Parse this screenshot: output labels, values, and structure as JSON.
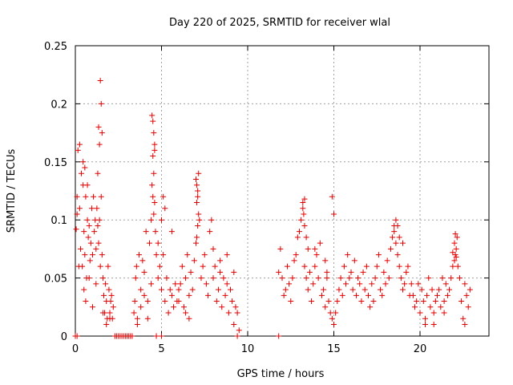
{
  "chart_data": {
    "type": "scatter",
    "title": "Day 220 of 2025, SRMTID for receiver wlal",
    "xlabel": "GPS time / hours",
    "ylabel": "SRMTID / TECUs",
    "xlim": [
      0,
      24
    ],
    "ylim": [
      0,
      0.25
    ],
    "xticks": [
      0,
      5,
      10,
      15,
      20
    ],
    "xtick_labels": [
      "0",
      "5",
      "10",
      "15",
      "20"
    ],
    "yticks": [
      0,
      0.05,
      0.1,
      0.15,
      0.2,
      0.25
    ],
    "ytick_labels": [
      "0",
      "0.05",
      "0.1",
      "0.15",
      "0.2",
      "0.25"
    ],
    "grid": true,
    "marker": "+",
    "series": [
      {
        "name": "SRMTID",
        "color": "#e00000",
        "x": [
          0.05,
          0.1,
          0.2,
          0.25,
          0.3,
          0.35,
          0.4,
          0.45,
          0.5,
          0.55,
          0.6,
          0.65,
          0.7,
          0.75,
          0.8,
          0.85,
          0.9,
          0.95,
          1.0,
          1.05,
          1.1,
          1.15,
          1.2,
          1.25,
          1.3,
          1.35,
          1.4,
          1.45,
          1.5,
          1.55,
          1.6,
          1.65,
          1.7,
          1.75,
          1.8,
          1.85,
          1.9,
          1.95,
          2.0,
          2.05,
          2.1,
          2.15,
          2.2,
          0.1,
          0.15,
          0.25,
          0.45,
          0.55,
          0.7,
          1.3,
          1.35,
          1.4,
          1.5,
          1.45,
          1.55,
          0.5,
          0.6,
          0.8,
          1.0,
          1.2,
          1.6,
          1.8,
          2.0,
          3.4,
          3.45,
          3.5,
          3.55,
          3.6,
          3.7,
          3.8,
          3.9,
          4.0,
          4.1,
          4.2,
          4.3,
          4.4,
          4.5,
          4.55,
          4.6,
          4.65,
          4.7,
          4.8,
          4.9,
          5.0,
          5.1,
          5.2,
          5.3,
          5.4,
          5.5,
          5.6,
          5.7,
          5.8,
          5.9,
          6.0,
          4.45,
          4.5,
          4.55,
          4.6,
          4.5,
          4.45,
          4.6,
          4.55,
          5.0,
          5.1,
          3.6,
          3.8,
          4.0,
          4.2,
          4.4,
          4.8,
          5.2,
          5.6,
          6.0,
          6.1,
          6.2,
          6.3,
          6.4,
          6.5,
          6.6,
          6.7,
          6.8,
          6.9,
          7.0,
          7.05,
          7.1,
          7.15,
          7.2,
          7.3,
          7.4,
          7.5,
          7.6,
          7.7,
          7.8,
          7.9,
          8.0,
          8.1,
          8.2,
          8.3,
          8.4,
          8.5,
          8.6,
          8.7,
          8.8,
          8.9,
          9.0,
          9.1,
          9.2,
          9.3,
          9.4,
          9.5,
          7.0,
          7.1,
          7.05,
          7.15,
          7.1,
          7.05,
          6.4,
          6.6,
          8.0,
          8.4,
          8.8,
          9.2,
          11.8,
          11.9,
          12.0,
          12.1,
          12.2,
          12.3,
          12.4,
          12.5,
          12.6,
          12.7,
          12.8,
          12.9,
          13.0,
          13.1,
          13.2,
          13.3,
          13.4,
          13.5,
          13.6,
          13.7,
          13.8,
          13.9,
          14.0,
          14.1,
          14.2,
          14.3,
          14.4,
          14.5,
          14.6,
          14.7,
          14.8,
          14.9,
          15.0,
          13.2,
          13.25,
          13.3,
          13.3,
          13.4,
          13.5,
          13.9,
          14.5,
          14.6,
          14.9,
          15.0,
          15.1,
          15.2,
          15.3,
          15.4,
          15.5,
          15.6,
          15.7,
          15.8,
          15.9,
          16.0,
          16.1,
          16.2,
          16.3,
          16.4,
          16.5,
          16.6,
          16.7,
          16.8,
          16.9,
          17.0,
          17.1,
          17.2,
          17.3,
          17.4,
          17.5,
          17.6,
          17.7,
          17.8,
          17.9,
          18.0,
          18.1,
          18.2,
          18.3,
          18.4,
          18.5,
          18.6,
          18.7,
          18.8,
          18.9,
          19.0,
          19.1,
          19.2,
          19.3,
          19.4,
          19.5,
          18.5,
          18.6,
          18.7,
          18.8,
          19.0,
          19.6,
          19.7,
          19.8,
          19.9,
          20.0,
          20.1,
          20.2,
          20.3,
          20.4,
          20.5,
          20.6,
          20.7,
          20.8,
          20.9,
          21.0,
          21.1,
          21.2,
          21.3,
          21.4,
          21.5,
          21.6,
          21.7,
          21.8,
          21.9,
          22.0,
          22.05,
          22.1,
          22.15,
          22.2,
          22.3,
          22.4,
          22.5,
          22.6,
          22.7,
          22.8,
          22.9,
          21.9,
          22.0,
          22.1,
          22.05,
          20.3,
          20.8,
          21.4,
          22.6,
          0.0,
          0.1,
          2.3,
          2.4,
          2.5,
          2.6,
          2.7,
          2.8,
          2.9,
          3.0,
          3.1,
          3.2,
          3.3,
          4.7,
          5.0,
          9.4,
          11.8
        ],
        "y": [
          0.092,
          0.105,
          0.06,
          0.11,
          0.075,
          0.14,
          0.06,
          0.13,
          0.09,
          0.07,
          0.12,
          0.05,
          0.1,
          0.085,
          0.095,
          0.065,
          0.08,
          0.11,
          0.07,
          0.12,
          0.09,
          0.1,
          0.075,
          0.11,
          0.095,
          0.08,
          0.1,
          0.06,
          0.12,
          0.07,
          0.05,
          0.035,
          0.02,
          0.045,
          0.03,
          0.015,
          0.06,
          0.04,
          0.02,
          0.03,
          0.035,
          0.015,
          0.025,
          0.12,
          0.16,
          0.165,
          0.15,
          0.145,
          0.13,
          0.14,
          0.18,
          0.165,
          0.2,
          0.22,
          0.175,
          0.04,
          0.03,
          0.05,
          0.025,
          0.045,
          0.02,
          0.01,
          0.015,
          0.02,
          0.03,
          0.05,
          0.06,
          0.015,
          0.07,
          0.04,
          0.065,
          0.055,
          0.09,
          0.03,
          0.08,
          0.1,
          0.12,
          0.14,
          0.16,
          0.09,
          0.07,
          0.05,
          0.06,
          0.04,
          0.07,
          0.03,
          0.05,
          0.02,
          0.04,
          0.035,
          0.025,
          0.045,
          0.03,
          0.04,
          0.19,
          0.185,
          0.175,
          0.165,
          0.155,
          0.13,
          0.115,
          0.105,
          0.1,
          0.12,
          0.01,
          0.025,
          0.035,
          0.015,
          0.045,
          0.08,
          0.11,
          0.09,
          0.03,
          0.045,
          0.06,
          0.025,
          0.05,
          0.07,
          0.035,
          0.055,
          0.04,
          0.065,
          0.08,
          0.13,
          0.12,
          0.14,
          0.1,
          0.05,
          0.06,
          0.07,
          0.045,
          0.035,
          0.09,
          0.1,
          0.05,
          0.06,
          0.03,
          0.04,
          0.055,
          0.025,
          0.05,
          0.035,
          0.045,
          0.02,
          0.04,
          0.03,
          0.01,
          0.025,
          0.02,
          0.005,
          0.135,
          0.125,
          0.115,
          0.105,
          0.095,
          0.085,
          0.02,
          0.015,
          0.075,
          0.065,
          0.07,
          0.055,
          0.055,
          0.075,
          0.05,
          0.035,
          0.04,
          0.06,
          0.045,
          0.03,
          0.05,
          0.065,
          0.07,
          0.085,
          0.09,
          0.1,
          0.11,
          0.06,
          0.05,
          0.04,
          0.055,
          0.03,
          0.045,
          0.06,
          0.07,
          0.05,
          0.08,
          0.035,
          0.04,
          0.025,
          0.05,
          0.03,
          0.02,
          0.015,
          0.01,
          0.115,
          0.105,
          0.118,
          0.095,
          0.085,
          0.075,
          0.075,
          0.065,
          0.055,
          0.12,
          0.105,
          0.02,
          0.03,
          0.04,
          0.05,
          0.035,
          0.06,
          0.045,
          0.07,
          0.05,
          0.055,
          0.04,
          0.065,
          0.035,
          0.05,
          0.045,
          0.03,
          0.055,
          0.04,
          0.06,
          0.035,
          0.025,
          0.045,
          0.03,
          0.05,
          0.06,
          0.07,
          0.04,
          0.035,
          0.055,
          0.045,
          0.065,
          0.05,
          0.075,
          0.085,
          0.095,
          0.08,
          0.07,
          0.06,
          0.05,
          0.04,
          0.045,
          0.055,
          0.06,
          0.035,
          0.045,
          0.09,
          0.1,
          0.095,
          0.085,
          0.08,
          0.035,
          0.025,
          0.03,
          0.045,
          0.02,
          0.04,
          0.03,
          0.01,
          0.035,
          0.05,
          0.025,
          0.04,
          0.02,
          0.03,
          0.035,
          0.04,
          0.025,
          0.05,
          0.03,
          0.045,
          0.035,
          0.04,
          0.05,
          0.06,
          0.065,
          0.07,
          0.075,
          0.085,
          0.06,
          0.05,
          0.03,
          0.015,
          0.045,
          0.035,
          0.025,
          0.04,
          0.072,
          0.08,
          0.068,
          0.088,
          0.015,
          0.01,
          0.02,
          0.01,
          0.0,
          0.0,
          0.0,
          0.0,
          0.0,
          0.0,
          0.0,
          0.0,
          0.0,
          0.0,
          0.0,
          0.0,
          0.0,
          0.0,
          0.0,
          0.0,
          0.0
        ]
      }
    ]
  }
}
